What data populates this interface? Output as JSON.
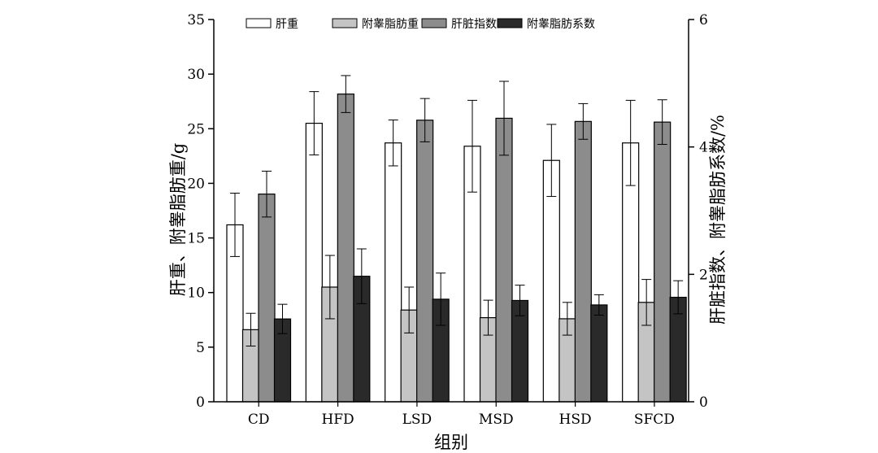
{
  "chart_data": {
    "type": "bar",
    "title": "",
    "xlabel": "组别",
    "ylabel_left": "肝重、附睾脂肪重/g",
    "ylabel_right": "肝脏指数、附睾脂肪系数/%",
    "categories": [
      "CD",
      "HFD",
      "LSD",
      "MSD",
      "HSD",
      "SFCD"
    ],
    "left_axis": {
      "ylim": [
        0,
        35
      ],
      "ticks": [
        0,
        5,
        10,
        15,
        20,
        25,
        30,
        35
      ]
    },
    "right_axis": {
      "ylim": [
        0,
        6
      ],
      "ticks": [
        0,
        2,
        4,
        6
      ]
    },
    "grid": false,
    "legend_position": "top",
    "series": [
      {
        "name": "肝重",
        "axis": "left",
        "color": "#ffffff",
        "values": [
          16.2,
          25.5,
          23.7,
          23.4,
          22.1,
          23.7
        ],
        "errors": [
          2.9,
          2.9,
          2.1,
          4.2,
          3.3,
          3.9
        ]
      },
      {
        "name": "附睾脂肪重",
        "axis": "left",
        "color": "#c4c4c4",
        "values": [
          6.6,
          10.5,
          8.4,
          7.7,
          7.6,
          9.1
        ],
        "errors": [
          1.5,
          2.9,
          2.1,
          1.6,
          1.5,
          2.1
        ]
      },
      {
        "name": "肝脏指数",
        "axis": "right",
        "color": "#8c8c8c",
        "values": [
          3.26,
          4.83,
          4.42,
          4.45,
          4.4,
          4.39
        ],
        "errors": [
          0.36,
          0.29,
          0.34,
          0.58,
          0.28,
          0.35
        ]
      },
      {
        "name": "附睾脂肪系数",
        "axis": "right",
        "color": "#2a2a2a",
        "values": [
          1.3,
          1.97,
          1.61,
          1.59,
          1.52,
          1.64
        ],
        "errors": [
          0.23,
          0.43,
          0.41,
          0.24,
          0.16,
          0.26
        ]
      }
    ]
  }
}
